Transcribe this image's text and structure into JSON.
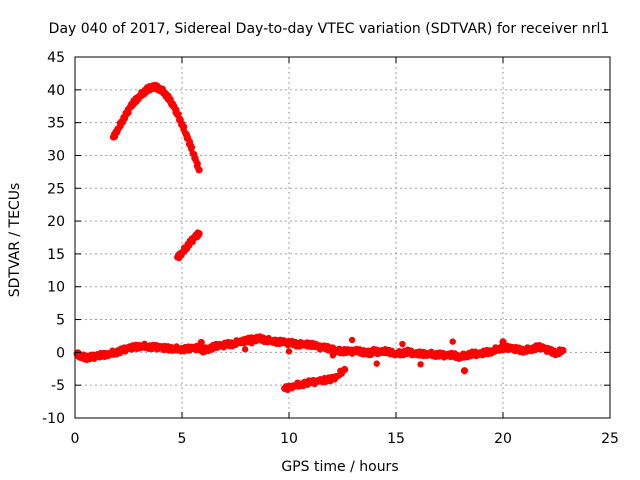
{
  "chart_data": {
    "type": "scatter",
    "title": "Day 040 of 2017, Sidereal Day-to-day VTEC variation (SDTVAR) for receiver nrl1",
    "xlabel": "GPS time / hours",
    "ylabel": "SDTVAR / TECUs",
    "xlim": [
      0,
      25
    ],
    "ylim": [
      -10,
      45
    ],
    "xticks": [
      "0",
      "5",
      "10",
      "15",
      "20",
      "25"
    ],
    "yticks": [
      "-10",
      "-5",
      "0",
      "5",
      "10",
      "15",
      "20",
      "25",
      "30",
      "35",
      "40",
      "45"
    ],
    "grid": true,
    "marker_color": "#ff0000",
    "series": [
      {
        "name": "upper arc",
        "points": [
          [
            1.8,
            32.8
          ],
          [
            2.0,
            34.0
          ],
          [
            2.2,
            35.2
          ],
          [
            2.4,
            36.3
          ],
          [
            2.6,
            37.4
          ],
          [
            2.8,
            38.3
          ],
          [
            3.0,
            39.0
          ],
          [
            3.2,
            39.6
          ],
          [
            3.4,
            40.1
          ],
          [
            3.6,
            40.4
          ],
          [
            3.8,
            40.4
          ],
          [
            4.0,
            40.1
          ],
          [
            4.2,
            39.5
          ],
          [
            4.4,
            38.6
          ],
          [
            4.6,
            37.5
          ],
          [
            4.8,
            36.2
          ],
          [
            5.0,
            34.8
          ],
          [
            5.2,
            33.2
          ],
          [
            5.4,
            31.5
          ],
          [
            5.6,
            29.6
          ],
          [
            5.8,
            27.8
          ]
        ]
      },
      {
        "name": "middle segment",
        "points": [
          [
            4.8,
            14.5
          ],
          [
            5.0,
            15.2
          ],
          [
            5.2,
            16.0
          ],
          [
            5.4,
            16.8
          ],
          [
            5.6,
            17.5
          ],
          [
            5.8,
            18.1
          ]
        ]
      },
      {
        "name": "main trace",
        "points": [
          [
            0.1,
            -0.2
          ],
          [
            0.3,
            -0.6
          ],
          [
            0.5,
            -0.8
          ],
          [
            0.8,
            -0.7
          ],
          [
            1.0,
            -0.6
          ],
          [
            1.3,
            -0.4
          ],
          [
            1.6,
            -0.2
          ],
          [
            1.9,
            0.0
          ],
          [
            2.2,
            0.3
          ],
          [
            2.5,
            0.6
          ],
          [
            2.8,
            0.8
          ],
          [
            3.1,
            1.0
          ],
          [
            3.4,
            0.9
          ],
          [
            3.7,
            0.8
          ],
          [
            4.0,
            0.7
          ],
          [
            4.3,
            0.6
          ],
          [
            4.6,
            0.6
          ],
          [
            4.9,
            0.5
          ],
          [
            5.2,
            0.5
          ],
          [
            5.5,
            0.6
          ],
          [
            5.8,
            0.7
          ],
          [
            6.0,
            0.3
          ],
          [
            6.2,
            0.5
          ],
          [
            6.5,
            0.9
          ],
          [
            6.8,
            1.0
          ],
          [
            7.1,
            1.2
          ],
          [
            7.4,
            1.3
          ],
          [
            7.7,
            1.7
          ],
          [
            8.0,
            1.8
          ],
          [
            8.3,
            2.0
          ],
          [
            8.6,
            2.1
          ],
          [
            8.9,
            1.9
          ],
          [
            9.2,
            1.8
          ],
          [
            9.5,
            1.6
          ],
          [
            9.8,
            1.5
          ],
          [
            10.1,
            1.4
          ],
          [
            10.4,
            1.2
          ],
          [
            10.7,
            1.3
          ],
          [
            11.0,
            1.2
          ],
          [
            11.3,
            0.9
          ],
          [
            11.6,
            0.7
          ],
          [
            11.9,
            0.6
          ],
          [
            12.2,
            0.3
          ],
          [
            12.5,
            0.2
          ],
          [
            12.8,
            0.1
          ],
          [
            13.1,
            0.2
          ],
          [
            13.4,
            0.1
          ],
          [
            13.6,
            0.0
          ],
          [
            13.8,
            -0.1
          ],
          [
            14.0,
            0.2
          ],
          [
            14.3,
            0.0
          ],
          [
            14.6,
            0.2
          ],
          [
            15.0,
            -0.2
          ],
          [
            15.3,
            -0.1
          ],
          [
            15.6,
            0.1
          ],
          [
            15.9,
            -0.3
          ],
          [
            16.2,
            -0.2
          ],
          [
            16.5,
            -0.2
          ],
          [
            16.8,
            -0.3
          ],
          [
            17.1,
            -0.4
          ],
          [
            17.4,
            -0.5
          ],
          [
            17.7,
            -0.4
          ],
          [
            18.0,
            -0.7
          ],
          [
            18.3,
            -0.4
          ],
          [
            18.6,
            -0.2
          ],
          [
            18.9,
            -0.3
          ],
          [
            19.2,
            0.0
          ],
          [
            19.5,
            0.2
          ],
          [
            19.8,
            0.6
          ],
          [
            20.1,
            0.7
          ],
          [
            20.4,
            0.6
          ],
          [
            20.7,
            0.4
          ],
          [
            21.0,
            0.3
          ],
          [
            21.3,
            0.5
          ],
          [
            21.6,
            0.8
          ],
          [
            21.9,
            0.6
          ],
          [
            22.2,
            0.2
          ],
          [
            22.5,
            -0.1
          ],
          [
            22.8,
            0.3
          ]
        ]
      },
      {
        "name": "lower segment",
        "points": [
          [
            9.8,
            -5.5
          ],
          [
            10.2,
            -5.1
          ],
          [
            10.6,
            -4.8
          ],
          [
            11.0,
            -4.6
          ],
          [
            11.4,
            -4.4
          ],
          [
            11.8,
            -4.2
          ],
          [
            12.2,
            -3.7
          ],
          [
            12.6,
            -2.6
          ]
        ]
      },
      {
        "name": "isolated points",
        "points": [
          [
            18.2,
            -2.8
          ],
          [
            5.9,
            1.5
          ],
          [
            20.0,
            1.6
          ]
        ]
      }
    ]
  }
}
